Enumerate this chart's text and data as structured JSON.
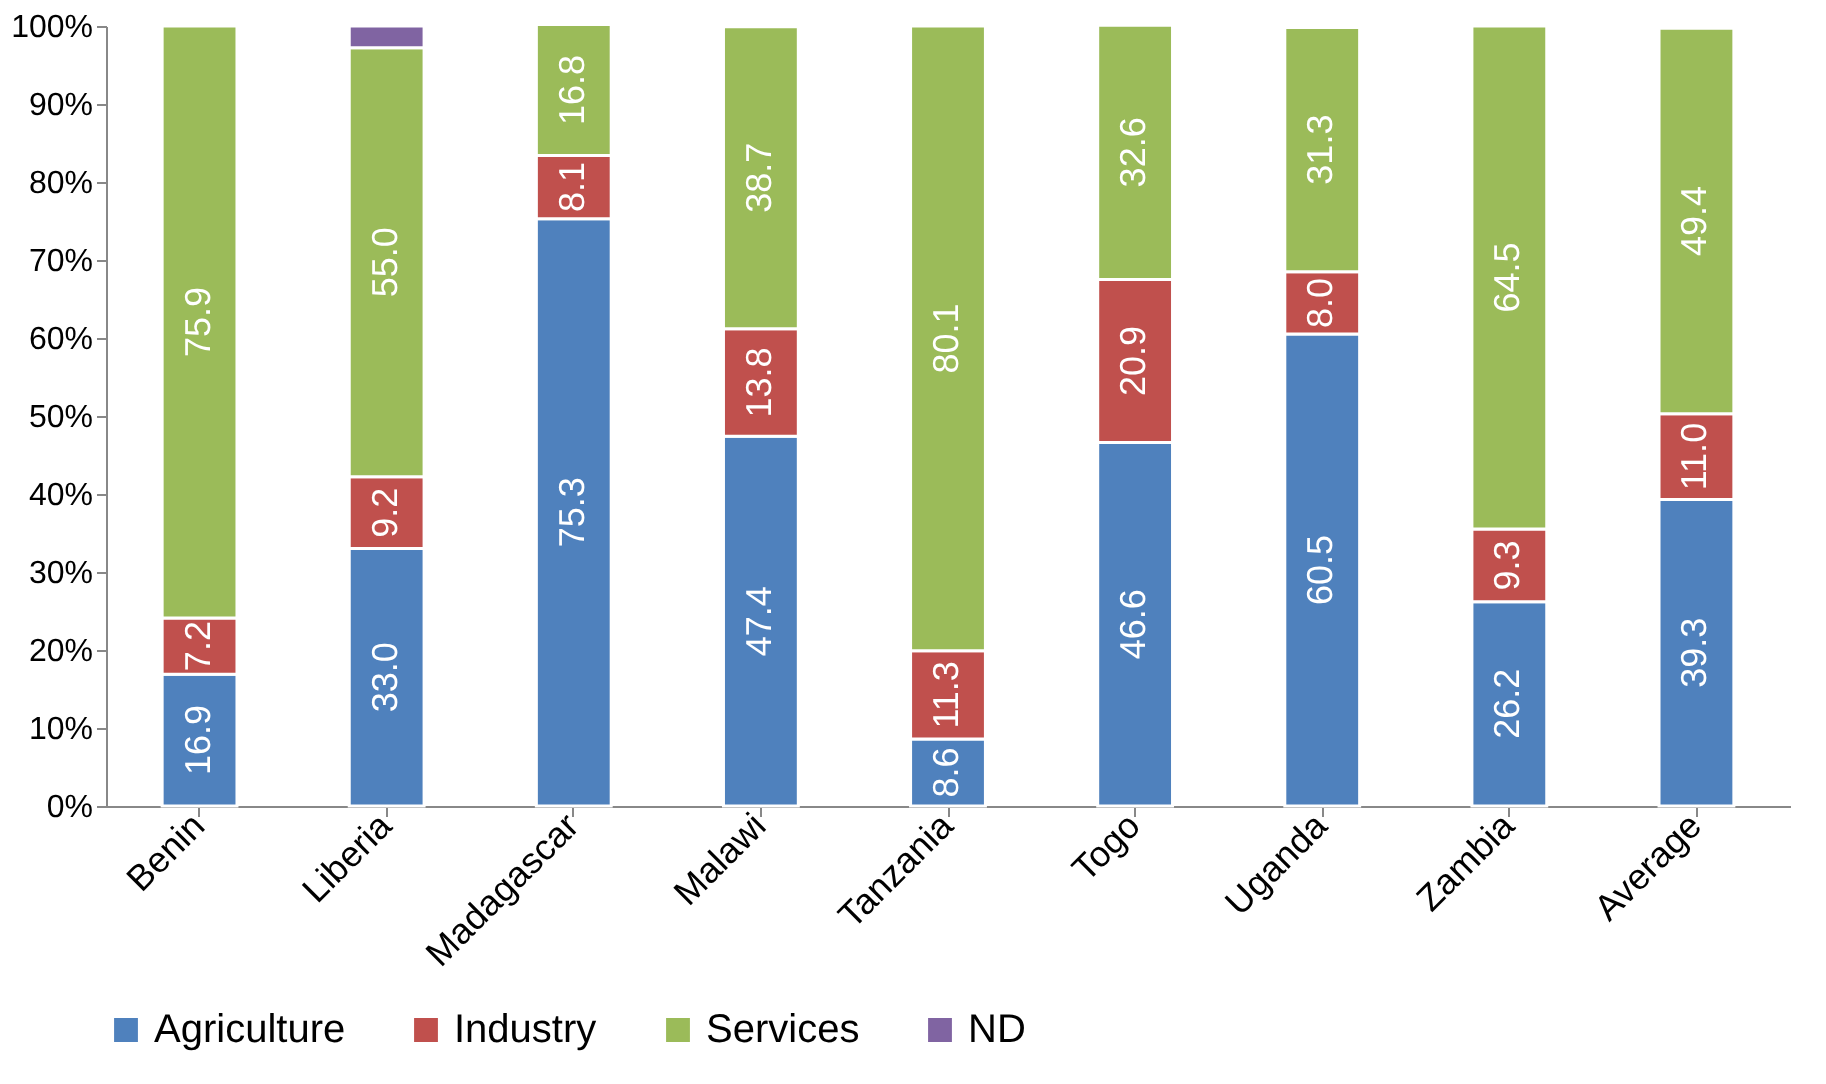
{
  "chart_data": {
    "type": "bar",
    "stacked": true,
    "categories": [
      "Benin",
      "Liberia",
      "Madagascar",
      "Malawi",
      "Tanzania",
      "Togo",
      "Uganda",
      "Zambia",
      "Average"
    ],
    "series": [
      {
        "name": "Agriculture",
        "color": "#4f81bd",
        "values": [
          16.9,
          33.0,
          75.3,
          47.4,
          8.6,
          46.6,
          60.5,
          26.2,
          39.3
        ],
        "value_labels": [
          "16.9",
          "33.0",
          "75.3",
          "47.4",
          "8.6",
          "46.6",
          "60.5",
          "26.2",
          "39.3"
        ]
      },
      {
        "name": "Industry",
        "color": "#c0504d",
        "values": [
          7.2,
          9.2,
          8.1,
          13.8,
          11.3,
          20.9,
          8.0,
          9.3,
          11.0
        ],
        "value_labels": [
          "7.2",
          "9.2",
          "8.1",
          "13.8",
          "11.3",
          "20.9",
          "8.0",
          "9.3",
          "11.0"
        ]
      },
      {
        "name": "Services",
        "color": "#9bbb59",
        "values": [
          75.9,
          55.0,
          16.8,
          38.7,
          80.1,
          32.6,
          31.3,
          64.5,
          49.4
        ],
        "value_labels": [
          "75.9",
          "55.0",
          "16.8",
          "38.7",
          "80.1",
          "32.6",
          "31.3",
          "64.5",
          "49.4"
        ]
      },
      {
        "name": "ND",
        "color": "#8064a2",
        "values": [
          null,
          2.8,
          null,
          null,
          null,
          null,
          null,
          null,
          null
        ],
        "value_labels": [
          null,
          null,
          null,
          null,
          null,
          null,
          null,
          null,
          null
        ]
      }
    ],
    "ylim": [
      0,
      100
    ],
    "yticks": [
      {
        "value": 0,
        "label": "0%"
      },
      {
        "value": 10,
        "label": "10%"
      },
      {
        "value": 20,
        "label": "20%"
      },
      {
        "value": 30,
        "label": "30%"
      },
      {
        "value": 40,
        "label": "40%"
      },
      {
        "value": 50,
        "label": "50%"
      },
      {
        "value": 60,
        "label": "60%"
      },
      {
        "value": 70,
        "label": "70%"
      },
      {
        "value": 80,
        "label": "80%"
      },
      {
        "value": 90,
        "label": "90%"
      },
      {
        "value": 100,
        "label": "100%"
      }
    ],
    "grid": false,
    "legend": "bottom"
  }
}
